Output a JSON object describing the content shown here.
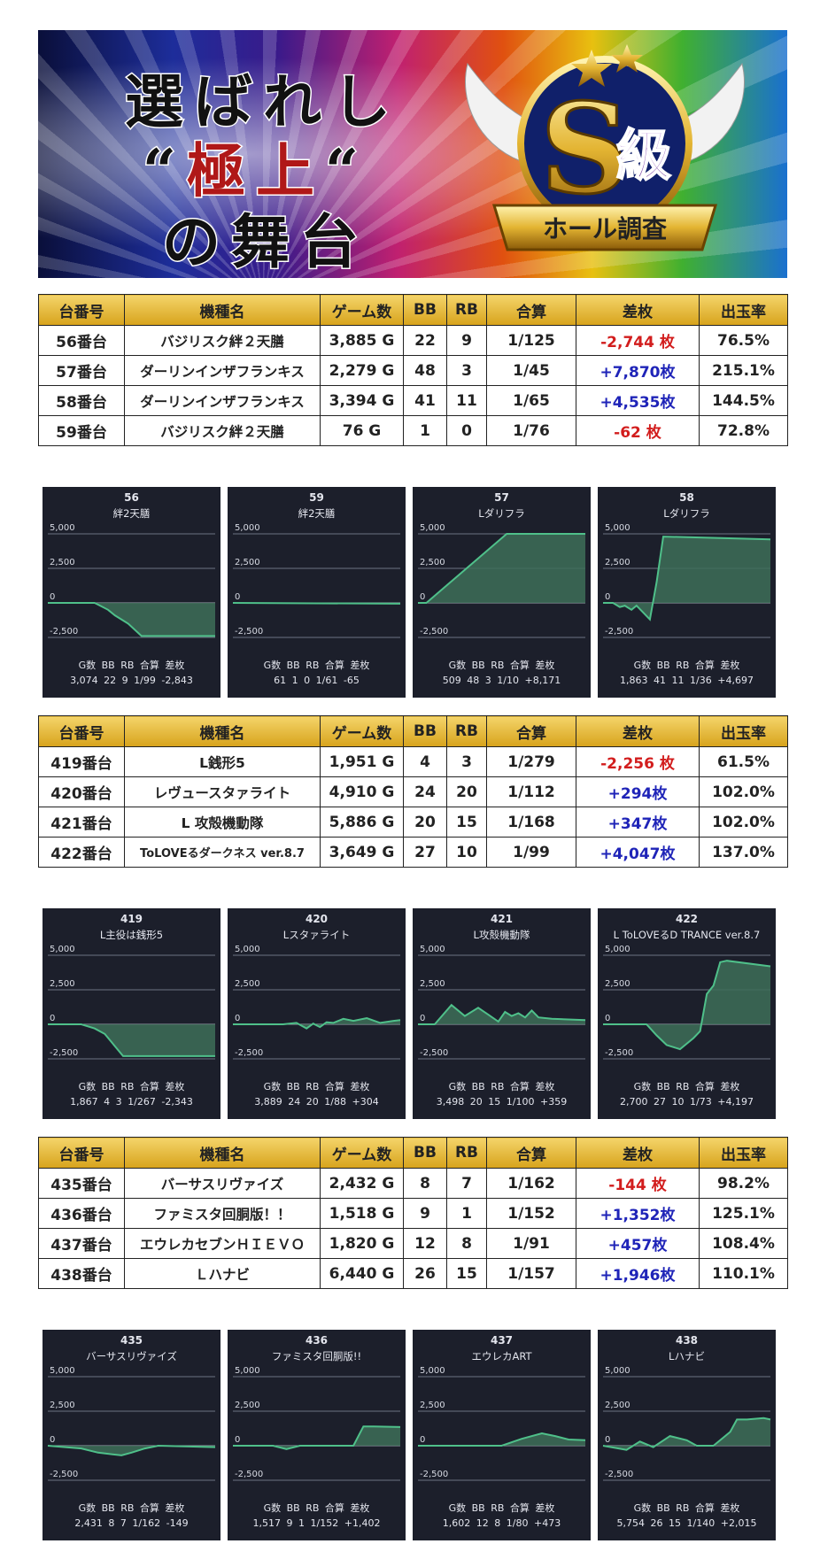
{
  "banner": {
    "line1": "選ばれし",
    "line2_open": "“",
    "line2_main": "極上",
    "line2_close": "“",
    "line3": "の舞台",
    "badge_main": "S",
    "badge_kanji": "級",
    "badge_ribbon": "ホール調査"
  },
  "table_headers": [
    "台番号",
    "機種名",
    "ゲーム数",
    "BB",
    "RB",
    "合算",
    "差枚",
    "出玉率"
  ],
  "stat_tables": [
    [
      {
        "no": "56番台",
        "name": "バジリスク絆２天膳",
        "games": "3,885 G",
        "bb": "22",
        "rb": "9",
        "total": "1/125",
        "diff": "-2,744 枚",
        "rate": "76.5%"
      },
      {
        "no": "57番台",
        "name": "ダーリンインザフランキス",
        "games": "2,279 G",
        "bb": "48",
        "rb": "3",
        "total": "1/45",
        "diff": "+7,870枚",
        "rate": "215.1%"
      },
      {
        "no": "58番台",
        "name": "ダーリンインザフランキス",
        "games": "3,394 G",
        "bb": "41",
        "rb": "11",
        "total": "1/65",
        "diff": "+4,535枚",
        "rate": "144.5%"
      },
      {
        "no": "59番台",
        "name": "バジリスク絆２天膳",
        "games": "76 G",
        "bb": "1",
        "rb": "0",
        "total": "1/76",
        "diff": "-62 枚",
        "rate": "72.8%"
      }
    ],
    [
      {
        "no": "419番台",
        "name": "L銭形5",
        "games": "1,951 G",
        "bb": "4",
        "rb": "3",
        "total": "1/279",
        "diff": "-2,256 枚",
        "rate": "61.5%"
      },
      {
        "no": "420番台",
        "name": "レヴュースタァライト",
        "games": "4,910 G",
        "bb": "24",
        "rb": "20",
        "total": "1/112",
        "diff": "+294枚",
        "rate": "102.0%"
      },
      {
        "no": "421番台",
        "name": "L 攻殻機動隊",
        "games": "5,886 G",
        "bb": "20",
        "rb": "15",
        "total": "1/168",
        "diff": "+347枚",
        "rate": "102.0%"
      },
      {
        "no": "422番台",
        "name": "ToLOVEるダークネス ver.8.7",
        "games": "3,649 G",
        "bb": "27",
        "rb": "10",
        "total": "1/99",
        "diff": "+4,047枚",
        "rate": "137.0%"
      }
    ],
    [
      {
        "no": "435番台",
        "name": "バーサスリヴァイズ",
        "games": "2,432 G",
        "bb": "8",
        "rb": "7",
        "total": "1/162",
        "diff": "-144 枚",
        "rate": "98.2%"
      },
      {
        "no": "436番台",
        "name": "ファミスタ回胴版！！",
        "games": "1,518 G",
        "bb": "9",
        "rb": "1",
        "total": "1/152",
        "diff": "+1,352枚",
        "rate": "125.1%"
      },
      {
        "no": "437番台",
        "name": "エウレカセブンＨＩＥＶＯ",
        "games": "1,820 G",
        "bb": "12",
        "rb": "8",
        "total": "1/91",
        "diff": "+457枚",
        "rate": "108.4%"
      },
      {
        "no": "438番台",
        "name": "Ｌハナビ",
        "games": "6,440 G",
        "bb": "26",
        "rb": "15",
        "total": "1/157",
        "diff": "+1,946枚",
        "rate": "110.1%"
      }
    ]
  ],
  "stat_labels": {
    "g": "G数",
    "bb": "BB",
    "rb": "RB",
    "total": "合算",
    "diff": "差枚"
  },
  "colors": {
    "gold": "#e3b432",
    "negative": "#d21d1d",
    "positive": "#1f24b8",
    "chart_bg": "#1c1f2b",
    "chart_line": "#4fc08a",
    "chart_fill": "#3d6e58"
  },
  "chart_data": [
    {
      "type": "area",
      "number": "56",
      "name": "絆2天膳",
      "ylim": [
        -2500,
        5000
      ],
      "yticks": [
        "5,000",
        "2,500",
        "0",
        "-2,500"
      ],
      "x": [
        0,
        0.28,
        0.32,
        0.36,
        0.4,
        0.48,
        0.56,
        1
      ],
      "y": [
        0,
        0,
        -250,
        -500,
        -900,
        -1500,
        -2400,
        -2400
      ],
      "stats": {
        "g": "3,074",
        "bb": "22",
        "rb": "9",
        "total": "1/99",
        "diff": "-2,843"
      }
    },
    {
      "type": "area",
      "number": "59",
      "name": "絆2天膳",
      "ylim": [
        -2500,
        5000
      ],
      "yticks": [
        "5,000",
        "2,500",
        "0",
        "-2,500"
      ],
      "x": [
        0,
        1
      ],
      "y": [
        0,
        -60
      ],
      "stats": {
        "g": "61",
        "bb": "1",
        "rb": "0",
        "total": "1/61",
        "diff": "-65"
      }
    },
    {
      "type": "area",
      "number": "57",
      "name": "Lダリフラ",
      "ylim": [
        -2500,
        5000
      ],
      "yticks": [
        "5,000",
        "2,500",
        "0",
        "-2,500"
      ],
      "x": [
        0,
        0.05,
        0.53,
        1
      ],
      "y": [
        0,
        0,
        5000,
        5000
      ],
      "stats": {
        "g": "509",
        "bb": "48",
        "rb": "3",
        "total": "1/10",
        "diff": "+8,171"
      }
    },
    {
      "type": "area",
      "number": "58",
      "name": "Lダリフラ",
      "ylim": [
        -2500,
        5000
      ],
      "yticks": [
        "5,000",
        "2,500",
        "0",
        "-2,500"
      ],
      "x": [
        0,
        0.06,
        0.1,
        0.13,
        0.17,
        0.2,
        0.24,
        0.28,
        0.32,
        0.36,
        1
      ],
      "y": [
        0,
        0,
        -300,
        -200,
        -500,
        -200,
        -700,
        -1200,
        1500,
        4800,
        4600
      ],
      "stats": {
        "g": "1,863",
        "bb": "41",
        "rb": "11",
        "total": "1/36",
        "diff": "+4,697"
      }
    },
    {
      "type": "area",
      "number": "419",
      "name": "L主役は銭形5",
      "ylim": [
        -2500,
        5000
      ],
      "yticks": [
        "5,000",
        "2,500",
        "0",
        "-2,500"
      ],
      "x": [
        0,
        0.2,
        0.28,
        0.34,
        0.45,
        1
      ],
      "y": [
        0,
        0,
        -300,
        -700,
        -2300,
        -2300
      ],
      "stats": {
        "g": "1,867",
        "bb": "4",
        "rb": "3",
        "total": "1/267",
        "diff": "-2,343"
      }
    },
    {
      "type": "area",
      "number": "420",
      "name": "Lスタァライト",
      "ylim": [
        -2500,
        5000
      ],
      "yticks": [
        "5,000",
        "2,500",
        "0",
        "-2,500"
      ],
      "x": [
        0,
        0.3,
        0.38,
        0.44,
        0.48,
        0.52,
        0.56,
        0.6,
        0.66,
        0.72,
        0.8,
        0.88,
        0.96,
        1
      ],
      "y": [
        0,
        0,
        100,
        -300,
        50,
        -200,
        150,
        100,
        400,
        250,
        450,
        100,
        250,
        300
      ],
      "stats": {
        "g": "3,889",
        "bb": "24",
        "rb": "20",
        "total": "1/88",
        "diff": "+304"
      }
    },
    {
      "type": "area",
      "number": "421",
      "name": "L攻殻機動隊",
      "ylim": [
        -2500,
        5000
      ],
      "yticks": [
        "5,000",
        "2,500",
        "0",
        "-2,500"
      ],
      "x": [
        0,
        0.1,
        0.2,
        0.28,
        0.36,
        0.42,
        0.48,
        0.52,
        0.56,
        0.6,
        0.64,
        0.68,
        0.72,
        0.8,
        1
      ],
      "y": [
        0,
        0,
        1400,
        600,
        1200,
        700,
        200,
        900,
        600,
        800,
        500,
        1000,
        500,
        400,
        300
      ],
      "stats": {
        "g": "3,498",
        "bb": "20",
        "rb": "15",
        "total": "1/100",
        "diff": "+359"
      }
    },
    {
      "type": "area",
      "number": "422",
      "name": "L ToLOVEるD TRANCE ver.8.7",
      "ylim": [
        -2500,
        5000
      ],
      "yticks": [
        "5,000",
        "2,500",
        "0",
        "-2,500"
      ],
      "x": [
        0,
        0.26,
        0.32,
        0.38,
        0.46,
        0.54,
        0.58,
        0.62,
        0.66,
        0.7,
        0.74,
        1
      ],
      "y": [
        0,
        0,
        -800,
        -1500,
        -1800,
        -1000,
        -500,
        2200,
        2800,
        4500,
        4600,
        4200
      ],
      "stats": {
        "g": "2,700",
        "bb": "27",
        "rb": "10",
        "total": "1/73",
        "diff": "+4,197"
      }
    },
    {
      "type": "area",
      "number": "435",
      "name": "バーサスリヴァイズ",
      "ylim": [
        -2500,
        5000
      ],
      "yticks": [
        "5,000",
        "2,500",
        "0",
        "-2,500"
      ],
      "x": [
        0,
        0.2,
        0.3,
        0.44,
        0.5,
        0.58,
        0.66,
        1
      ],
      "y": [
        0,
        -200,
        -500,
        -700,
        -500,
        -200,
        0,
        -100
      ],
      "stats": {
        "g": "2,431",
        "bb": "8",
        "rb": "7",
        "total": "1/162",
        "diff": "-149"
      }
    },
    {
      "type": "area",
      "number": "436",
      "name": "ファミスタ回胴版!!",
      "ylim": [
        -2500,
        5000
      ],
      "yticks": [
        "5,000",
        "2,500",
        "0",
        "-2,500"
      ],
      "x": [
        0,
        0.24,
        0.32,
        0.4,
        0.72,
        0.78,
        0.84,
        1
      ],
      "y": [
        0,
        0,
        -250,
        0,
        0,
        1400,
        1400,
        1350
      ],
      "stats": {
        "g": "1,517",
        "bb": "9",
        "rb": "1",
        "total": "1/152",
        "diff": "+1,402"
      }
    },
    {
      "type": "area",
      "number": "437",
      "name": "エウレカART",
      "ylim": [
        -2500,
        5000
      ],
      "yticks": [
        "5,000",
        "2,500",
        "0",
        "-2,500"
      ],
      "x": [
        0,
        0.5,
        0.62,
        0.74,
        0.82,
        0.9,
        1
      ],
      "y": [
        0,
        0,
        500,
        900,
        700,
        450,
        400
      ],
      "stats": {
        "g": "1,602",
        "bb": "12",
        "rb": "8",
        "total": "1/80",
        "diff": "+473"
      }
    },
    {
      "type": "area",
      "number": "438",
      "name": "Lハナビ",
      "ylim": [
        -2500,
        5000
      ],
      "yticks": [
        "5,000",
        "2,500",
        "0",
        "-2,500"
      ],
      "x": [
        0,
        0.14,
        0.22,
        0.3,
        0.4,
        0.5,
        0.56,
        0.66,
        0.76,
        0.8,
        0.86,
        0.96,
        1
      ],
      "y": [
        0,
        -300,
        300,
        -100,
        700,
        400,
        0,
        0,
        1000,
        1900,
        1900,
        2000,
        1900
      ],
      "stats": {
        "g": "5,754",
        "bb": "26",
        "rb": "15",
        "total": "1/140",
        "diff": "+2,015"
      }
    }
  ]
}
